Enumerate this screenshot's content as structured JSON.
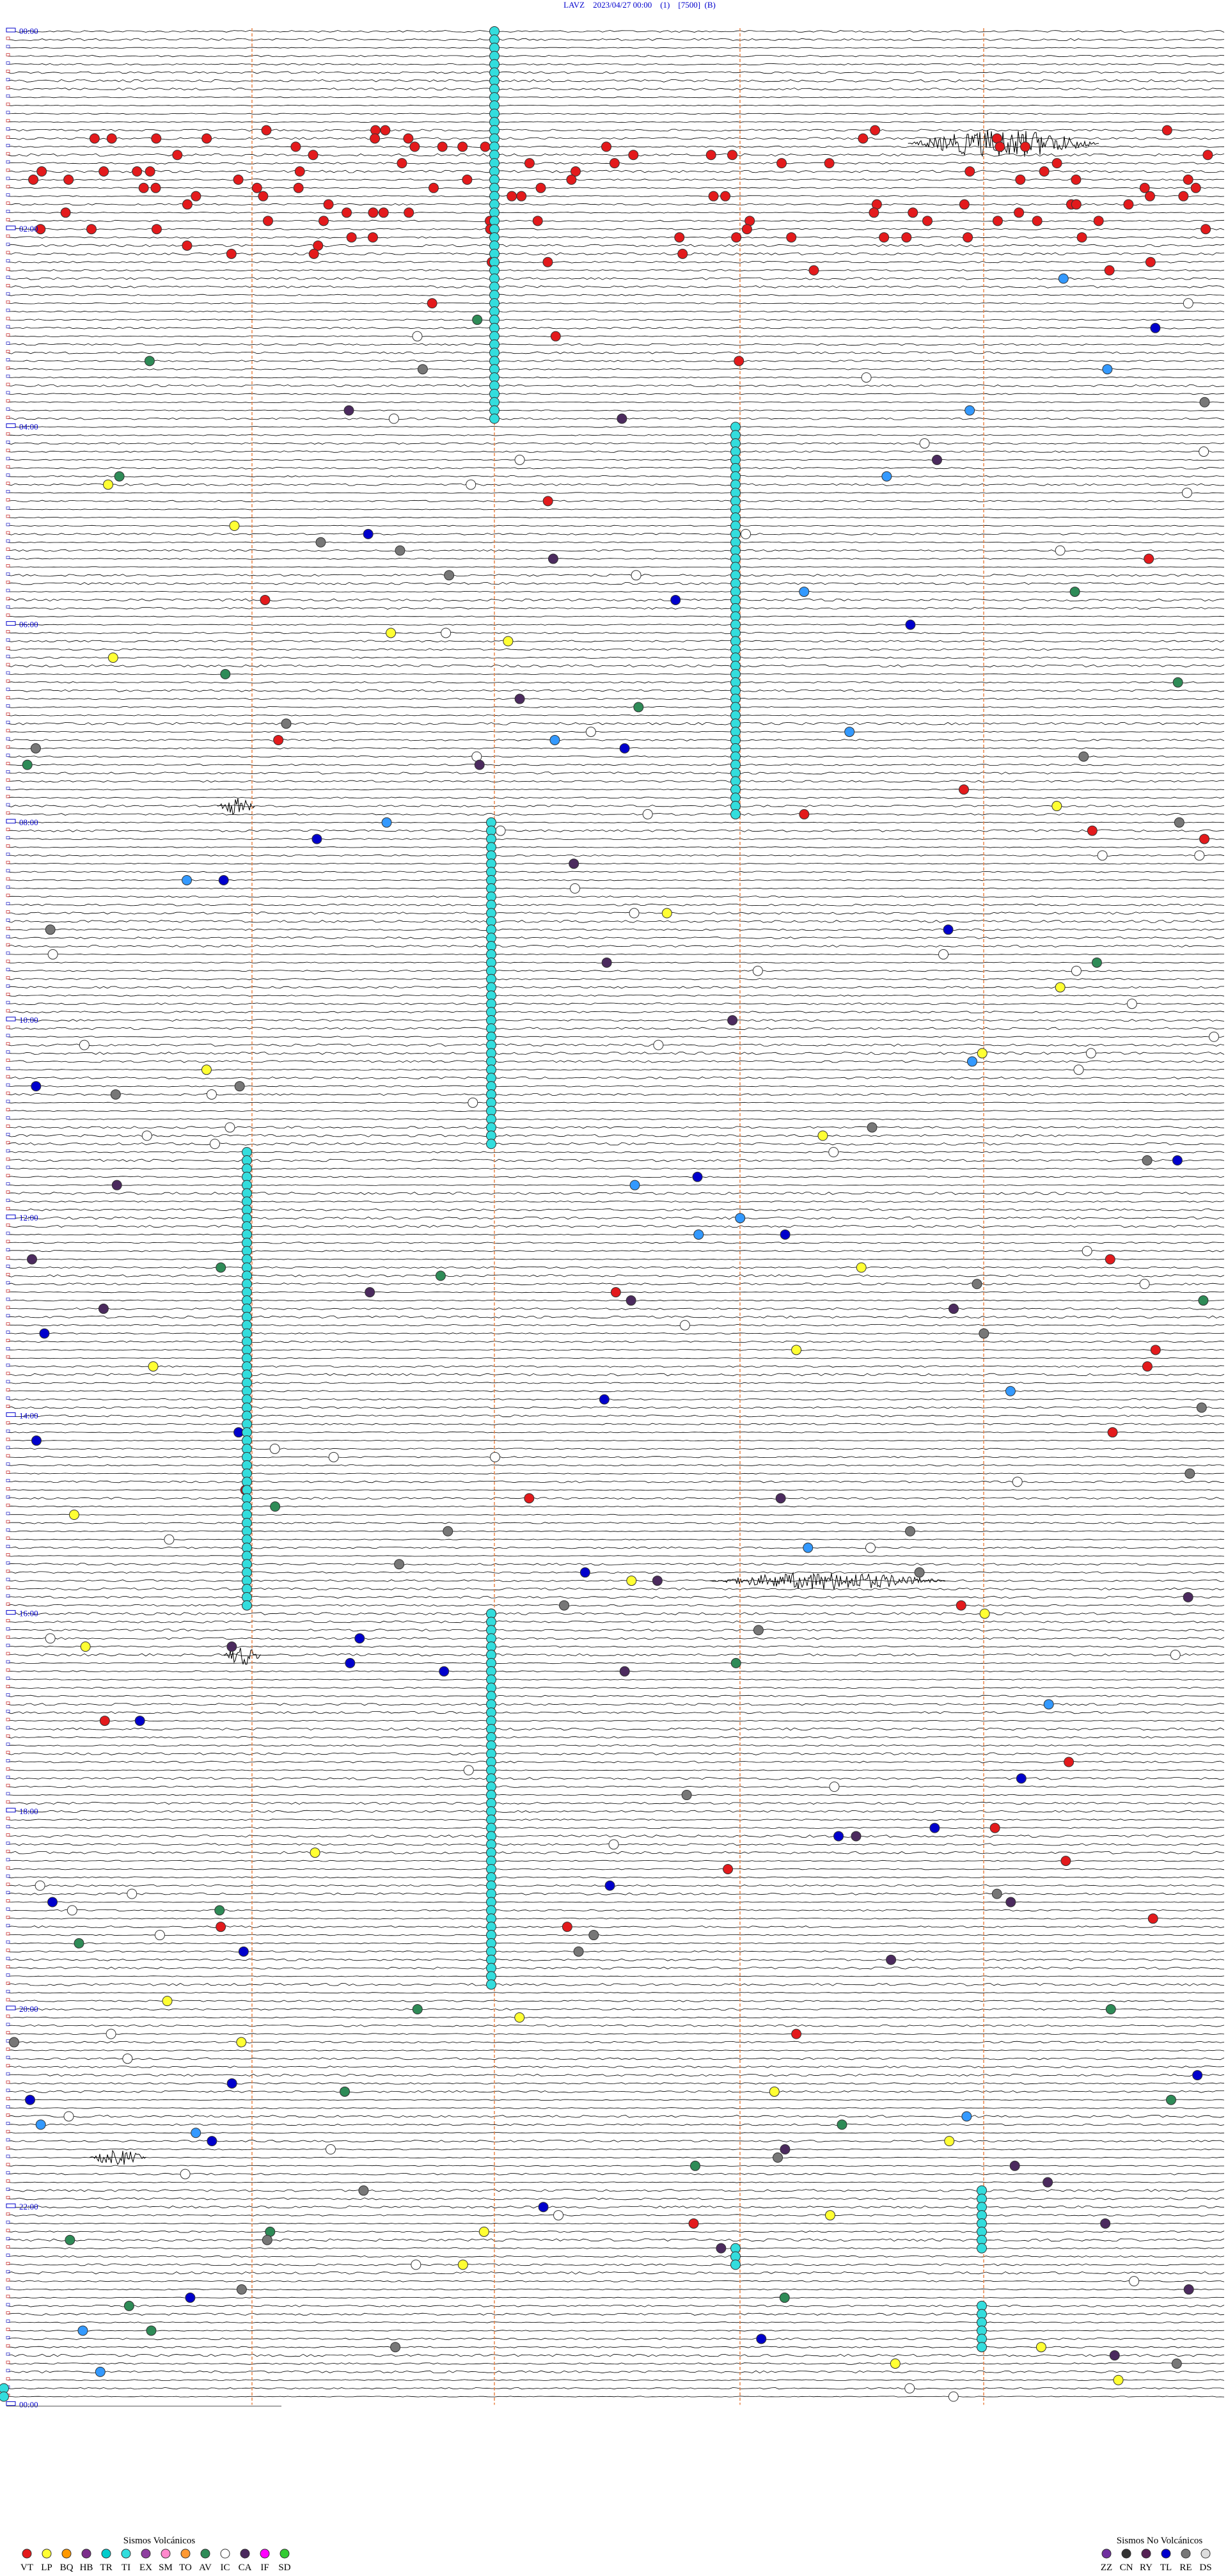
{
  "header": {
    "title": "LAVZ    2023/04/27 00:00    (1)    [7500]  (B)"
  },
  "time_labels": [
    "00:00",
    "02:00",
    "04:00",
    "06:00",
    "08:00",
    "10:00",
    "12:00",
    "14:00",
    "16:00",
    "18:00",
    "20:00",
    "22:00",
    "00:00"
  ],
  "legend_volcanic": {
    "title": "Sismos Volcánicos",
    "items": [
      {
        "code": "VT",
        "color": "#e31a1c"
      },
      {
        "code": "LP",
        "color": "#ffff33"
      },
      {
        "code": "BQ",
        "color": "#ff9900"
      },
      {
        "code": "HB",
        "color": "#7b2d8b"
      },
      {
        "code": "TR",
        "color": "#00cccc"
      },
      {
        "code": "TI",
        "color": "#33dddd"
      },
      {
        "code": "EX",
        "color": "#8e3fa0"
      },
      {
        "code": "SM",
        "color": "#ff88cc"
      },
      {
        "code": "TO",
        "color": "#ff9933"
      },
      {
        "code": "AV",
        "color": "#2e8b57"
      },
      {
        "code": "IC",
        "color": "#ffffff"
      },
      {
        "code": "CA",
        "color": "#4b2a5e"
      },
      {
        "code": "IF",
        "color": "#ff00ff"
      },
      {
        "code": "SD",
        "color": "#33cc33"
      }
    ]
  },
  "legend_non_volcanic": {
    "title": "Sismos No Volcánicos",
    "items": [
      {
        "code": "ZZ",
        "color": "#7030a0"
      },
      {
        "code": "CN",
        "color": "#333333"
      },
      {
        "code": "RY",
        "color": "#552255"
      },
      {
        "code": "TL",
        "color": "#0000cc"
      },
      {
        "code": "RE",
        "color": "#777777"
      },
      {
        "code": "DS",
        "color": "#dddddd"
      }
    ]
  }
}
